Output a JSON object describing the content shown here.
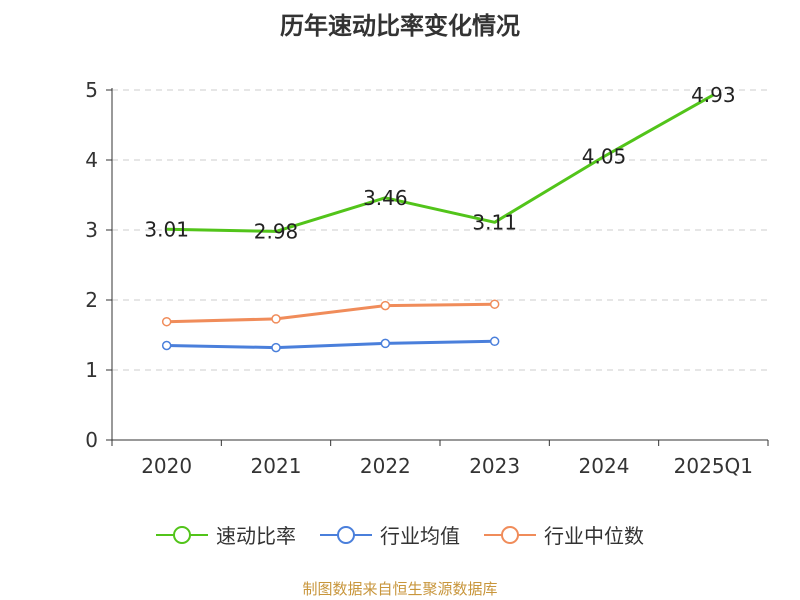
{
  "chart_data": {
    "type": "line",
    "title": "历年速动比率变化情况",
    "categories": [
      "2020",
      "2021",
      "2022",
      "2023",
      "2024",
      "2025Q1"
    ],
    "ylim": [
      0,
      5
    ],
    "yticks": [
      "0",
      "1",
      "2",
      "3",
      "4",
      "5"
    ],
    "grid": true,
    "legend_position": "bottom",
    "series": [
      {
        "name": "速动比率",
        "color": "#52c41a",
        "values": [
          3.01,
          2.98,
          3.46,
          3.11,
          4.05,
          4.93
        ],
        "labels": [
          "3.01",
          "2.98",
          "3.46",
          "3.11",
          "4.05",
          "4.93"
        ],
        "markers": false
      },
      {
        "name": "行业均值",
        "color": "#4a7fdb",
        "values": [
          1.35,
          1.32,
          1.38,
          1.41,
          null,
          null
        ],
        "markers": true
      },
      {
        "name": "行业中位数",
        "color": "#f08c5a",
        "values": [
          1.69,
          1.73,
          1.92,
          1.94,
          null,
          null
        ],
        "markers": true
      }
    ]
  },
  "source": "制图数据来自恒生聚源数据库"
}
